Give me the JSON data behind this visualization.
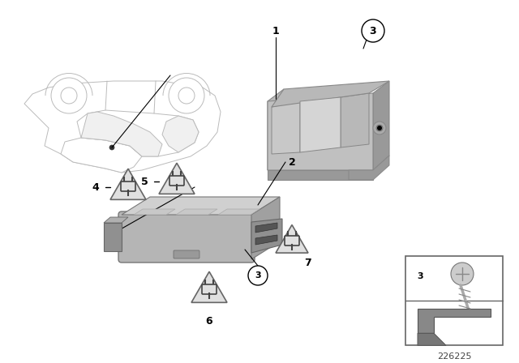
{
  "bg_color": "#ffffff",
  "part_number": "226225",
  "car_color": "#e8e8e8",
  "car_edge": "#bbbbbb",
  "bracket_color": "#b8b8b8",
  "bracket_dark": "#999999",
  "bracket_edge": "#888888",
  "hub_color": "#b0b0b0",
  "hub_top": "#c8c8c8",
  "hub_dark": "#909090",
  "hub_edge": "#777777",
  "tri_fill": "#e0e0e0",
  "tri_edge": "#666666"
}
